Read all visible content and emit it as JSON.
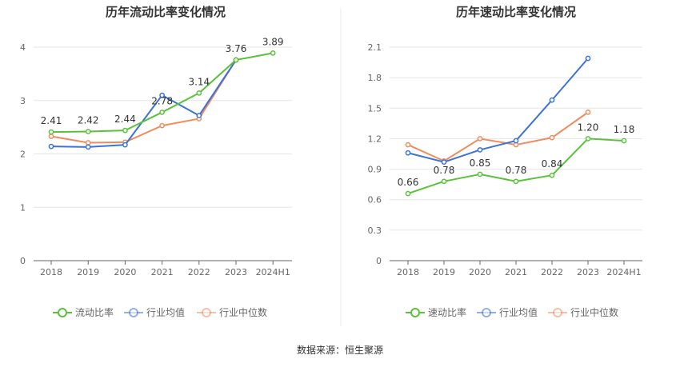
{
  "source": "数据来源：恒生聚源",
  "chart_data": [
    {
      "type": "line",
      "title": "历年流动比率变化情况",
      "categories": [
        "2018",
        "2019",
        "2020",
        "2021",
        "2022",
        "2023",
        "2024H1"
      ],
      "ylim": [
        0,
        4
      ],
      "yticks": [
        "0",
        "1",
        "2",
        "3",
        "4"
      ],
      "grid": true,
      "legend_position": "bottom",
      "series": [
        {
          "name": "流动比率",
          "color": "#5ac13a",
          "labeled": true,
          "labels": [
            "2.41",
            "2.42",
            "2.44",
            "2.78",
            "3.14",
            "3.76",
            "3.89"
          ],
          "values": [
            2.41,
            2.42,
            2.44,
            2.78,
            3.14,
            3.76,
            3.89
          ]
        },
        {
          "name": "行业均值",
          "color": "#3b72d5",
          "labeled": false,
          "values": [
            2.14,
            2.13,
            2.17,
            3.1,
            2.72,
            3.76,
            null
          ]
        },
        {
          "name": "行业中位数",
          "color": "#f18b5e",
          "labeled": false,
          "values": [
            2.33,
            2.21,
            2.22,
            2.53,
            2.66,
            3.76,
            null
          ]
        }
      ]
    },
    {
      "type": "line",
      "title": "历年速动比率变化情况",
      "categories": [
        "2018",
        "2019",
        "2020",
        "2021",
        "2022",
        "2023",
        "2024H1"
      ],
      "ylim": [
        0,
        2.1
      ],
      "yticks": [
        "0",
        "0.3",
        "0.6",
        "0.9",
        "1.2",
        "1.5",
        "1.8",
        "2.1"
      ],
      "grid": true,
      "legend_position": "bottom",
      "series": [
        {
          "name": "速动比率",
          "color": "#5ac13a",
          "labeled": true,
          "labels": [
            "0.66",
            "0.78",
            "0.85",
            "0.78",
            "0.84",
            "1.20",
            "1.18"
          ],
          "values": [
            0.66,
            0.78,
            0.85,
            0.78,
            0.84,
            1.2,
            1.18
          ]
        },
        {
          "name": "行业均值",
          "color": "#3b72d5",
          "labeled": false,
          "values": [
            1.06,
            0.97,
            1.09,
            1.18,
            1.58,
            1.99,
            null
          ]
        },
        {
          "name": "行业中位数",
          "color": "#f18b5e",
          "labeled": false,
          "values": [
            1.14,
            0.98,
            1.2,
            1.14,
            1.21,
            1.46,
            null
          ]
        }
      ]
    }
  ]
}
